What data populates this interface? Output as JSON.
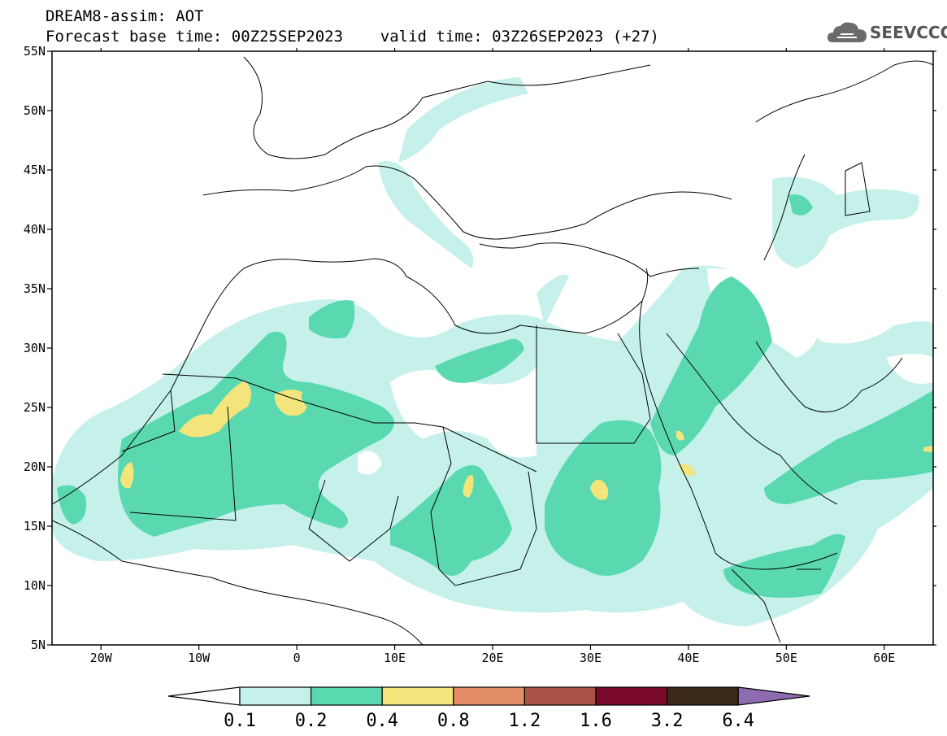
{
  "header": {
    "line1": "DREAM8-assim: AOT",
    "line2": "Forecast base time: 00Z25SEP2023    valid time: 03Z26SEP2023 (+27)"
  },
  "logo": {
    "text": "SEEVCCC",
    "icon": "cloud-logo-icon"
  },
  "map": {
    "lon_range": [
      -25,
      65
    ],
    "lat_range": [
      5,
      55
    ],
    "lat_labels": [
      "55N",
      "50N",
      "45N",
      "40N",
      "35N",
      "30N",
      "25N",
      "20N",
      "15N",
      "10N",
      "5N"
    ],
    "lon_labels": [
      "20W",
      "10W",
      "0",
      "10E",
      "20E",
      "30E",
      "40E",
      "50E",
      "60E"
    ]
  },
  "colorbar": {
    "levels": [
      "0.1",
      "0.2",
      "0.4",
      "0.8",
      "1.2",
      "1.6",
      "3.2",
      "6.4"
    ],
    "colors": [
      "#c6f1ea",
      "#5ad9b0",
      "#f3e57c",
      "#e38c68",
      "#a85345",
      "#7a0a2a",
      "#3b2a1a",
      "#8e6aae"
    ]
  }
}
